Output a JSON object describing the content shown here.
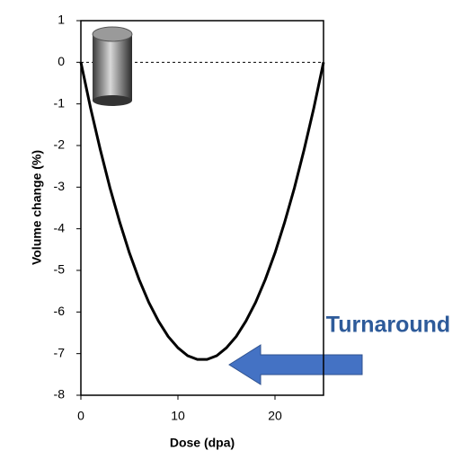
{
  "chart_data": {
    "type": "line",
    "x_label": "Dose (dpa)",
    "y_label": "Volume change (%)",
    "annotation": "Turnaround",
    "x": [
      0,
      1,
      2,
      3,
      4,
      5,
      6,
      7,
      8,
      9,
      10,
      11,
      12,
      13,
      14,
      15,
      16,
      17,
      18,
      19,
      20,
      21,
      22,
      23,
      24,
      25
    ],
    "values": [
      0,
      -1.1,
      -2.1,
      -3.02,
      -3.84,
      -4.58,
      -5.22,
      -5.77,
      -6.22,
      -6.59,
      -6.86,
      -7.05,
      -7.14,
      -7.14,
      -7.05,
      -6.86,
      -6.59,
      -6.22,
      -5.77,
      -5.22,
      -4.58,
      -3.84,
      -3.02,
      -2.1,
      -1.1,
      0
    ],
    "color": "#000000",
    "xlim": [
      0,
      25
    ],
    "xticks": [
      0,
      10,
      20
    ],
    "ylim": [
      -8,
      1
    ],
    "yticks": [
      1,
      0,
      -1,
      -2,
      -3,
      -4,
      -5,
      -6,
      -7,
      -8
    ],
    "reference_line": 0
  }
}
